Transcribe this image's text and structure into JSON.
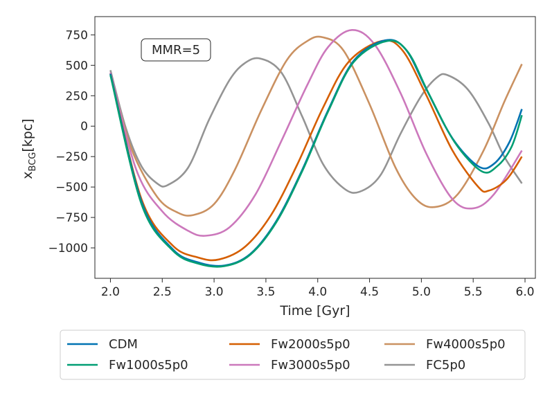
{
  "chart_data": {
    "type": "line",
    "xlabel": "Time [Gyr]",
    "ylabel_main": "x",
    "ylabel_sub": "BCG",
    "ylabel_unit": "[kpc]",
    "xlim": [
      1.85,
      6.1
    ],
    "ylim": [
      -1250,
      900
    ],
    "xticks": [
      2.0,
      2.5,
      3.0,
      3.5,
      4.0,
      4.5,
      5.0,
      5.5,
      6.0
    ],
    "xtick_labels": [
      "2.0",
      "2.5",
      "3.0",
      "3.5",
      "4.0",
      "4.5",
      "5.0",
      "5.5",
      "6.0"
    ],
    "yticks": [
      750,
      500,
      250,
      0,
      -250,
      -500,
      -750,
      -1000
    ],
    "ytick_labels": [
      "750",
      "500",
      "250",
      "0",
      "−250",
      "−500",
      "−750",
      "−1000"
    ],
    "annotation": "MMR=5",
    "legend_position": "below",
    "series": [
      {
        "name": "CDM",
        "color": "#0072b2",
        "points": [
          [
            2.0,
            430
          ],
          [
            2.3,
            -620
          ],
          [
            2.6,
            -1010
          ],
          [
            2.85,
            -1120
          ],
          [
            3.1,
            -1145
          ],
          [
            3.35,
            -1050
          ],
          [
            3.6,
            -780
          ],
          [
            3.85,
            -360
          ],
          [
            4.1,
            130
          ],
          [
            4.35,
            540
          ],
          [
            4.65,
            705
          ],
          [
            4.85,
            630
          ],
          [
            5.05,
            300
          ],
          [
            5.3,
            -100
          ],
          [
            5.55,
            -330
          ],
          [
            5.7,
            -310
          ],
          [
            5.85,
            -130
          ],
          [
            5.97,
            140
          ]
        ]
      },
      {
        "name": "Fw1000s5p0",
        "color": "#009e73",
        "points": [
          [
            2.0,
            420
          ],
          [
            2.3,
            -640
          ],
          [
            2.6,
            -1020
          ],
          [
            2.85,
            -1130
          ],
          [
            3.1,
            -1150
          ],
          [
            3.35,
            -1055
          ],
          [
            3.6,
            -790
          ],
          [
            3.85,
            -370
          ],
          [
            4.1,
            120
          ],
          [
            4.35,
            530
          ],
          [
            4.67,
            700
          ],
          [
            4.87,
            610
          ],
          [
            5.07,
            270
          ],
          [
            5.32,
            -130
          ],
          [
            5.58,
            -370
          ],
          [
            5.73,
            -330
          ],
          [
            5.87,
            -170
          ],
          [
            5.97,
            90
          ]
        ]
      },
      {
        "name": "Fw2000s5p0",
        "color": "#d55e00",
        "points": [
          [
            2.0,
            430
          ],
          [
            2.3,
            -600
          ],
          [
            2.6,
            -980
          ],
          [
            2.85,
            -1080
          ],
          [
            3.05,
            -1095
          ],
          [
            3.3,
            -990
          ],
          [
            3.55,
            -730
          ],
          [
            3.8,
            -320
          ],
          [
            4.05,
            150
          ],
          [
            4.3,
            530
          ],
          [
            4.62,
            700
          ],
          [
            4.82,
            620
          ],
          [
            5.05,
            250
          ],
          [
            5.3,
            -200
          ],
          [
            5.55,
            -500
          ],
          [
            5.65,
            -530
          ],
          [
            5.82,
            -440
          ],
          [
            5.97,
            -250
          ]
        ]
      },
      {
        "name": "Fw3000s5p0",
        "color": "#cc78bc",
        "points": [
          [
            2.0,
            440
          ],
          [
            2.25,
            -360
          ],
          [
            2.5,
            -700
          ],
          [
            2.75,
            -860
          ],
          [
            2.92,
            -900
          ],
          [
            3.15,
            -830
          ],
          [
            3.4,
            -560
          ],
          [
            3.65,
            -120
          ],
          [
            3.9,
            340
          ],
          [
            4.1,
            650
          ],
          [
            4.33,
            790
          ],
          [
            4.55,
            670
          ],
          [
            4.8,
            270
          ],
          [
            5.05,
            -230
          ],
          [
            5.3,
            -600
          ],
          [
            5.5,
            -675
          ],
          [
            5.7,
            -560
          ],
          [
            5.97,
            -200
          ]
        ]
      },
      {
        "name": "Fw4000s5p0",
        "color": "#ca9161",
        "points": [
          [
            2.0,
            430
          ],
          [
            2.2,
            -180
          ],
          [
            2.45,
            -580
          ],
          [
            2.65,
            -710
          ],
          [
            2.8,
            -730
          ],
          [
            3.0,
            -640
          ],
          [
            3.2,
            -360
          ],
          [
            3.45,
            120
          ],
          [
            3.7,
            540
          ],
          [
            3.9,
            700
          ],
          [
            4.05,
            730
          ],
          [
            4.25,
            620
          ],
          [
            4.5,
            180
          ],
          [
            4.75,
            -340
          ],
          [
            4.95,
            -600
          ],
          [
            5.13,
            -665
          ],
          [
            5.35,
            -560
          ],
          [
            5.6,
            -200
          ],
          [
            5.8,
            200
          ],
          [
            5.97,
            510
          ]
        ]
      },
      {
        "name": "FC5p0",
        "color": "#949494",
        "points": [
          [
            2.0,
            460
          ],
          [
            2.15,
            -20
          ],
          [
            2.3,
            -330
          ],
          [
            2.45,
            -470
          ],
          [
            2.55,
            -485
          ],
          [
            2.75,
            -340
          ],
          [
            2.95,
            50
          ],
          [
            3.15,
            380
          ],
          [
            3.3,
            520
          ],
          [
            3.45,
            555
          ],
          [
            3.65,
            440
          ],
          [
            3.85,
            80
          ],
          [
            4.05,
            -310
          ],
          [
            4.25,
            -510
          ],
          [
            4.4,
            -540
          ],
          [
            4.6,
            -410
          ],
          [
            4.8,
            -60
          ],
          [
            5.0,
            250
          ],
          [
            5.15,
            400
          ],
          [
            5.25,
            420
          ],
          [
            5.45,
            300
          ],
          [
            5.65,
            20
          ],
          [
            5.8,
            -250
          ],
          [
            5.97,
            -470
          ]
        ]
      }
    ]
  }
}
